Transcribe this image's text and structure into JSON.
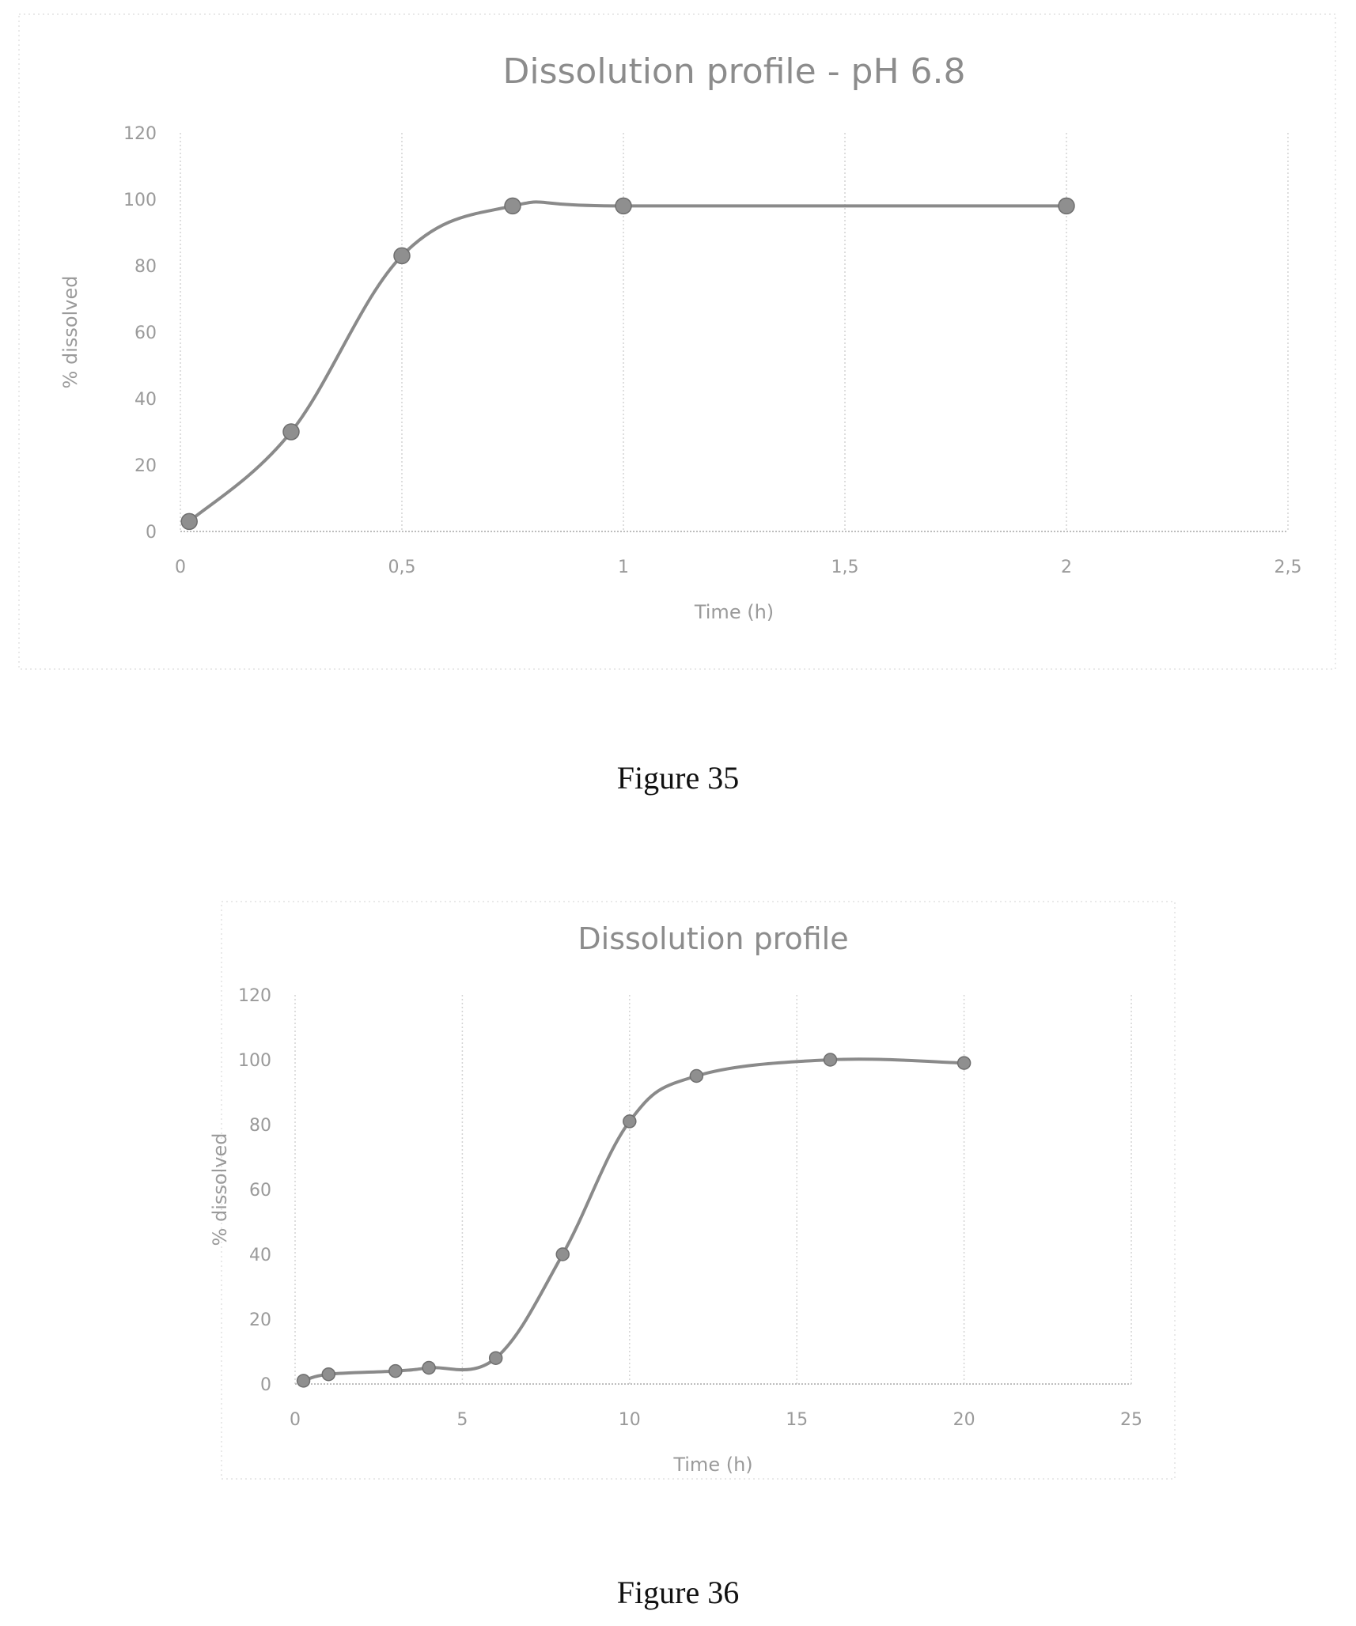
{
  "figures": [
    {
      "caption": "Figure 35",
      "chart_data": {
        "type": "line",
        "title": "Dissolution profile - pH 6.8",
        "xlabel": "Time (h)",
        "ylabel": "% dissolved",
        "xlim": [
          0,
          2.5
        ],
        "ylim": [
          0,
          120
        ],
        "x_ticks": [
          0,
          0.5,
          1,
          1.5,
          2,
          2.5
        ],
        "x_tick_labels": [
          "0",
          "0,5",
          "1",
          "1,5",
          "2",
          "2,5"
        ],
        "y_ticks": [
          0,
          20,
          40,
          60,
          80,
          100,
          120
        ],
        "y_tick_labels": [
          "0",
          "20",
          "40",
          "60",
          "80",
          "100",
          "120"
        ],
        "grid": "vertical",
        "series": [
          {
            "x": [
              0.02,
              0.25,
              0.5,
              0.75,
              1,
              2
            ],
            "y": [
              3,
              30,
              83,
              98,
              98,
              98
            ]
          }
        ]
      }
    },
    {
      "caption": "Figure 36",
      "chart_data": {
        "type": "line",
        "title": "Dissolution profile",
        "xlabel": "Time (h)",
        "ylabel": "% dissolved",
        "xlim": [
          0,
          25
        ],
        "ylim": [
          0,
          120
        ],
        "x_ticks": [
          0,
          5,
          10,
          15,
          20,
          25
        ],
        "x_tick_labels": [
          "0",
          "5",
          "10",
          "15",
          "20",
          "25"
        ],
        "y_ticks": [
          0,
          20,
          40,
          60,
          80,
          100,
          120
        ],
        "y_tick_labels": [
          "0",
          "20",
          "40",
          "60",
          "80",
          "100",
          "120"
        ],
        "grid": "vertical",
        "series": [
          {
            "x": [
              0.25,
              1,
              3,
              4,
              6,
              8,
              10,
              12,
              16,
              20
            ],
            "y": [
              1,
              3,
              4,
              5,
              8,
              40,
              81,
              95,
              100,
              99
            ]
          }
        ]
      }
    }
  ]
}
